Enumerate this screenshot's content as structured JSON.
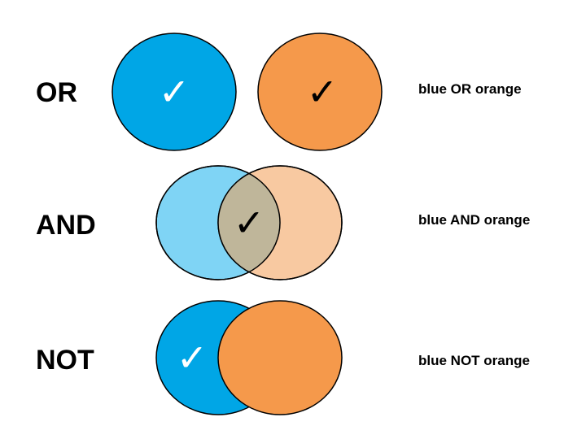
{
  "colors": {
    "blue": "#00a6e6",
    "orange": "#f5994b",
    "blue_light": "#7fd4f5",
    "orange_light": "#f8c9a1",
    "overlap": "#bfb69a",
    "outline": "#000000",
    "check_on_blue": "#ffffff",
    "check_dark": "#000000"
  },
  "check_glyph": "✓",
  "rows": {
    "or": {
      "label": "OR",
      "caption": "blue OR orange"
    },
    "and": {
      "label": "AND",
      "caption": "blue AND orange"
    },
    "not": {
      "label": "NOT",
      "caption": "blue NOT orange"
    }
  }
}
